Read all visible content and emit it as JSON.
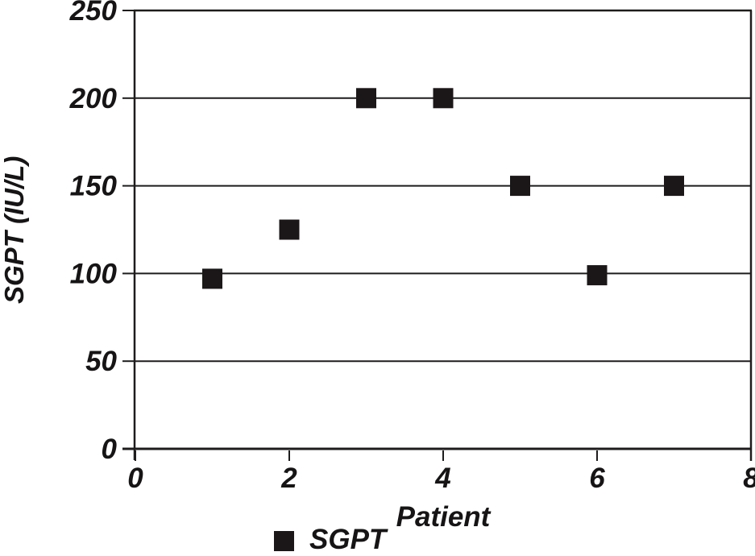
{
  "chart_data": {
    "type": "scatter",
    "title": "",
    "xlabel": "Patient",
    "ylabel": "SGPT (IU/L)",
    "xlim": [
      0,
      8
    ],
    "ylim": [
      0,
      250
    ],
    "x_ticks": [
      0,
      2,
      4,
      6,
      8
    ],
    "y_ticks": [
      0,
      50,
      100,
      150,
      200,
      250
    ],
    "grid": "horizontal",
    "legend": {
      "position": "bottom",
      "marker": "filled-square"
    },
    "series": [
      {
        "name": "SGPT",
        "marker": "square",
        "marker_size": 25,
        "color": "#1b1718",
        "points": [
          {
            "x": 1,
            "y": 97
          },
          {
            "x": 2,
            "y": 125
          },
          {
            "x": 3,
            "y": 200
          },
          {
            "x": 4,
            "y": 200
          },
          {
            "x": 5,
            "y": 150
          },
          {
            "x": 6,
            "y": 99
          },
          {
            "x": 7,
            "y": 150
          }
        ]
      }
    ],
    "colors": {
      "axis": "#1e1c1c",
      "grid": "#1e1c1c",
      "text": "#161414",
      "background": "#ffffff",
      "marker": "#1b1718"
    }
  }
}
